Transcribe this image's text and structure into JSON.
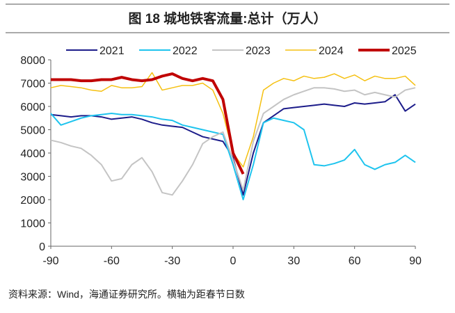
{
  "chart_data": {
    "type": "line",
    "title": "图 18 城地铁客流量:总计（万人）",
    "source": "资料来源：Wind，海通证券研究所。横轴为距春节日数",
    "x": [
      -90,
      -85,
      -80,
      -75,
      -70,
      -65,
      -60,
      -55,
      -50,
      -45,
      -40,
      -35,
      -30,
      -25,
      -20,
      -15,
      -10,
      -5,
      0,
      5,
      10,
      15,
      20,
      25,
      30,
      35,
      40,
      45,
      50,
      55,
      60,
      65,
      70,
      75,
      80,
      85,
      90
    ],
    "series": [
      {
        "name": "2021",
        "color": "#1c1c8a",
        "width": 2,
        "values": [
          5650,
          5600,
          5550,
          5600,
          5600,
          5550,
          5450,
          5500,
          5550,
          5450,
          5300,
          5200,
          5150,
          5100,
          4900,
          4700,
          4600,
          4500,
          3800,
          2200,
          4000,
          5300,
          5600,
          5900,
          5950,
          6000,
          6050,
          6100,
          6050,
          6000,
          6150,
          6100,
          6150,
          6200,
          6500,
          5800,
          6100
        ]
      },
      {
        "name": "2022",
        "color": "#1ec4ee",
        "width": 2,
        "values": [
          5700,
          5200,
          5350,
          5500,
          5600,
          5650,
          5700,
          5650,
          5650,
          5600,
          5550,
          5450,
          5400,
          5200,
          5100,
          5000,
          4900,
          4800,
          3500,
          2000,
          3500,
          5300,
          5500,
          5400,
          5300,
          5000,
          3500,
          3450,
          3550,
          3700,
          4150,
          3500,
          3300,
          3500,
          3600,
          3900,
          3600
        ]
      },
      {
        "name": "2023",
        "color": "#c4c4c4",
        "width": 2,
        "values": [
          4550,
          4450,
          4300,
          4200,
          3900,
          3500,
          2800,
          2900,
          3500,
          3800,
          3200,
          2300,
          2200,
          2800,
          3500,
          4400,
          4700,
          4900,
          3700,
          2400,
          4500,
          5700,
          6000,
          6300,
          6500,
          6650,
          6800,
          6800,
          6750,
          6650,
          6700,
          6500,
          6600,
          6500,
          6400,
          6700,
          6800
        ]
      },
      {
        "name": "2024",
        "color": "#f5c010",
        "width": 1.5,
        "values": [
          6800,
          6900,
          6850,
          6800,
          6700,
          6650,
          6900,
          6800,
          6800,
          6850,
          7450,
          6700,
          6800,
          6900,
          6900,
          7000,
          6700,
          5700,
          4000,
          3400,
          4700,
          6700,
          7000,
          7200,
          7100,
          7300,
          7200,
          7250,
          7400,
          7200,
          7350,
          7100,
          7300,
          7200,
          7200,
          7300,
          6900
        ]
      },
      {
        "name": "2025",
        "color": "#c00000",
        "width": 4,
        "values": [
          7150,
          7150,
          7150,
          7100,
          7100,
          7150,
          7150,
          7250,
          7150,
          7100,
          7150,
          7300,
          7400,
          7200,
          7100,
          7200,
          7100,
          6300,
          4000,
          3100,
          null,
          null,
          null,
          null,
          null,
          null,
          null,
          null,
          null,
          null,
          null,
          null,
          null,
          null,
          null,
          null,
          null
        ]
      }
    ],
    "xlim": [
      -90,
      90
    ],
    "xticks": [
      -90,
      -60,
      -30,
      0,
      30,
      60,
      90
    ],
    "ylim": [
      0,
      8000
    ],
    "yticks": [
      0,
      1000,
      2000,
      3000,
      4000,
      5000,
      6000,
      7000,
      8000
    ]
  }
}
